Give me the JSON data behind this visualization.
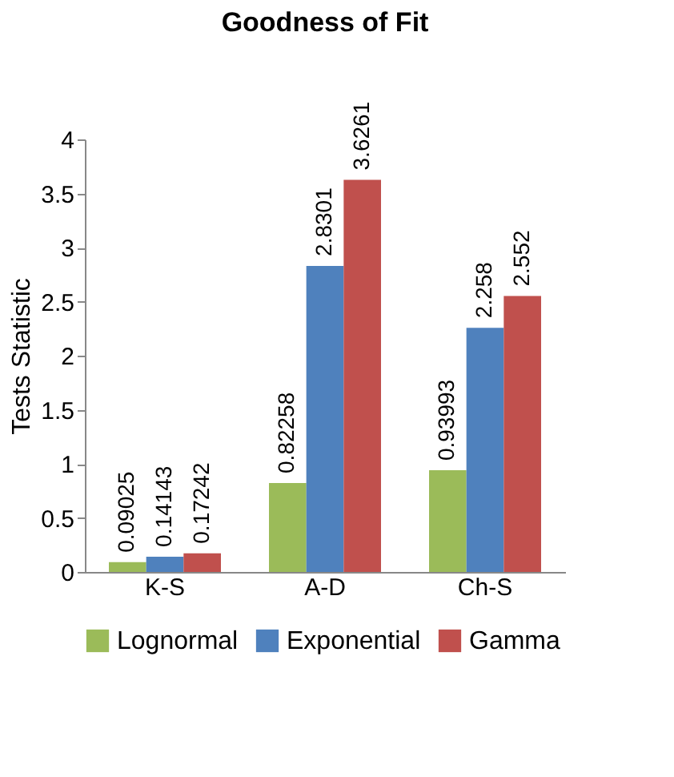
{
  "chart_data": {
    "type": "bar",
    "title": "Goodness of Fit",
    "ylabel": "Tests Statistic",
    "categories": [
      "K-S",
      "A-D",
      "Ch-S"
    ],
    "series": [
      {
        "name": "Lognormal",
        "color": "#9bbb59",
        "values": [
          0.09025,
          0.82258,
          0.93993
        ]
      },
      {
        "name": "Exponential",
        "color": "#4f81bd",
        "values": [
          0.14143,
          2.8301,
          2.258
        ]
      },
      {
        "name": "Gamma",
        "color": "#c0504d",
        "values": [
          0.17242,
          3.6261,
          2.552
        ]
      }
    ],
    "ylim": [
      0,
      4
    ],
    "yticks": [
      0,
      0.5,
      1,
      1.5,
      2,
      2.5,
      3,
      3.5,
      4
    ],
    "data_labels": true,
    "grid": false,
    "legend": "bottom"
  }
}
